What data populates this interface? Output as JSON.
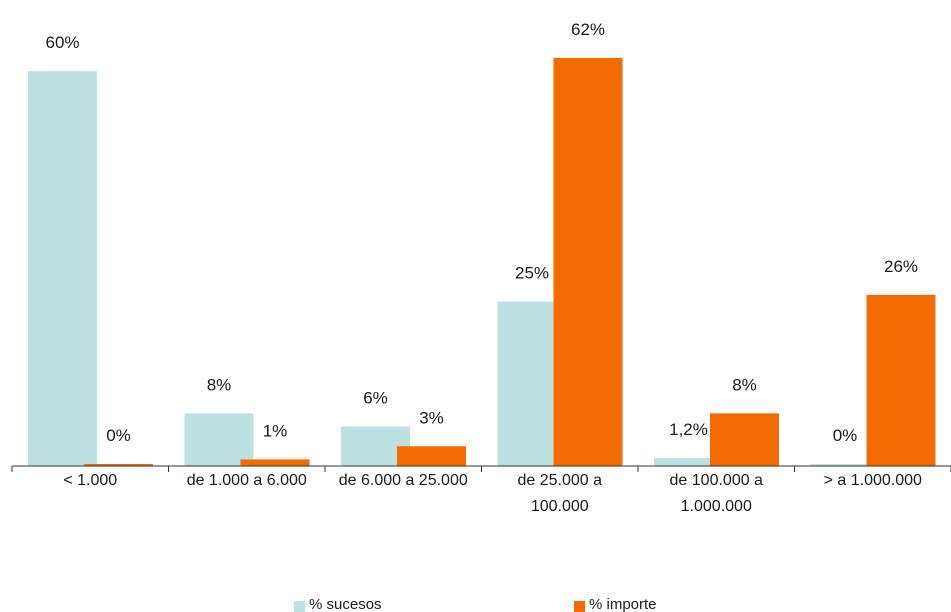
{
  "chart_data": {
    "type": "bar",
    "categories": [
      [
        "< 1.000"
      ],
      [
        "de 1.000 a 6.000"
      ],
      [
        "de 6.000 a 25.000"
      ],
      [
        "de 25.000 a",
        "100.000"
      ],
      [
        "de 100.000 a",
        "1.000.000"
      ],
      [
        "> a 1.000.000"
      ]
    ],
    "ylim": [
      0,
      62
    ],
    "grid": false,
    "legend_position": "bottom",
    "series": [
      {
        "name": "% sucesos",
        "color": "#bde0e3",
        "values": [
          60,
          8,
          6,
          25,
          1.2,
          0
        ],
        "labels": [
          "60%",
          "8%",
          "6%",
          "25%",
          "1,2%",
          "0%"
        ]
      },
      {
        "name": "% importe",
        "color": "#f26a00",
        "values": [
          0,
          1,
          3,
          62,
          8,
          26
        ],
        "labels": [
          "0%",
          "1%",
          "3%",
          "62%",
          "8%",
          "26%"
        ]
      }
    ]
  }
}
